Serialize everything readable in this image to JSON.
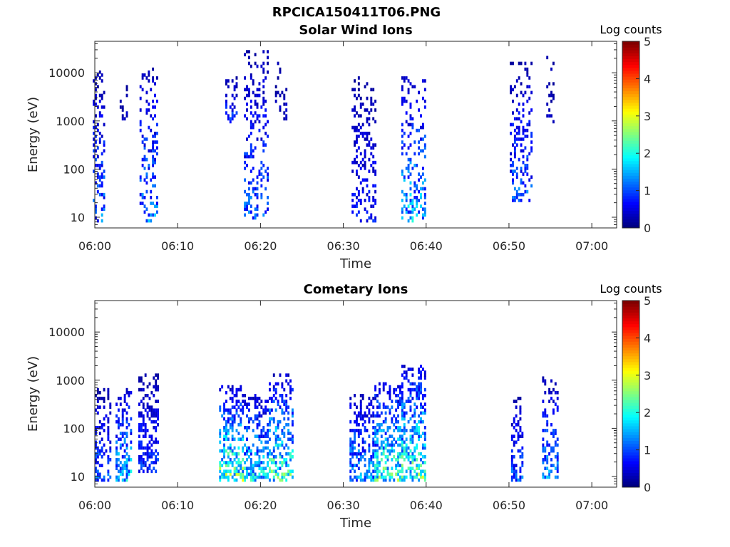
{
  "figure": {
    "title": "RPCICA150411T06.PNG"
  },
  "colors": {
    "axes": "#262626",
    "colormap": "jet",
    "background": "#ffffff"
  },
  "chart_data": [
    {
      "type": "heatmap",
      "title": "Solar Wind Ions",
      "xlabel": "Time",
      "ylabel": "Energy (eV)",
      "x_ticks": [
        "06:00",
        "06:10",
        "06:20",
        "06:30",
        "06:40",
        "06:50",
        "07:00"
      ],
      "xlim": [
        "06:00",
        "07:03"
      ],
      "y_scale": "log",
      "y_ticks": [
        "10",
        "100",
        "1000",
        "10000"
      ],
      "ylim": [
        6,
        45000
      ],
      "colorbar": {
        "label": "Log counts",
        "ticks": [
          "0",
          "1",
          "2",
          "3",
          "4",
          "5"
        ],
        "range": [
          0,
          5
        ]
      },
      "bursts": [
        {
          "center_minute": 0.5,
          "width_minutes": 1.5,
          "energy_range_eV": [
            7,
            10000
          ],
          "peak_log_counts": 1.6
        },
        {
          "center_minute": 3.5,
          "width_minutes": 1.0,
          "energy_range_eV": [
            1000,
            6000
          ],
          "peak_log_counts": 0.5
        },
        {
          "center_minute": 6.5,
          "width_minutes": 2.2,
          "energy_range_eV": [
            7,
            12000
          ],
          "peak_log_counts": 1.8
        },
        {
          "center_minute": 16.5,
          "width_minutes": 1.5,
          "energy_range_eV": [
            800,
            8000
          ],
          "peak_log_counts": 1.3
        },
        {
          "center_minute": 19.5,
          "width_minutes": 3.0,
          "energy_range_eV": [
            8,
            28000
          ],
          "peak_log_counts": 1.5
        },
        {
          "center_minute": 22.5,
          "width_minutes": 1.5,
          "energy_range_eV": [
            1000,
            15000
          ],
          "peak_log_counts": 0.5
        },
        {
          "center_minute": 32.5,
          "width_minutes": 3.0,
          "energy_range_eV": [
            7,
            9000
          ],
          "peak_log_counts": 1.0
        },
        {
          "center_minute": 38.5,
          "width_minutes": 3.0,
          "energy_range_eV": [
            7,
            8000
          ],
          "peak_log_counts": 2.2
        },
        {
          "center_minute": 51.5,
          "width_minutes": 2.8,
          "energy_range_eV": [
            20,
            15000
          ],
          "peak_log_counts": 1.5
        },
        {
          "center_minute": 55.0,
          "width_minutes": 1.0,
          "energy_range_eV": [
            700,
            20000
          ],
          "peak_log_counts": 0.5
        }
      ]
    },
    {
      "type": "heatmap",
      "title": "Cometary Ions",
      "xlabel": "Time",
      "ylabel": "Energy (eV)",
      "x_ticks": [
        "06:00",
        "06:10",
        "06:20",
        "06:30",
        "06:40",
        "06:50",
        "07:00"
      ],
      "xlim": [
        "06:00",
        "07:03"
      ],
      "y_scale": "log",
      "y_ticks": [
        "10",
        "100",
        "1000",
        "10000"
      ],
      "ylim": [
        6,
        45000
      ],
      "colorbar": {
        "label": "Log counts",
        "ticks": [
          "0",
          "1",
          "2",
          "3",
          "4",
          "5"
        ],
        "range": [
          0,
          5
        ]
      },
      "bursts": [
        {
          "center_minute": 1.0,
          "width_minutes": 2.0,
          "energy_range_eV": [
            7,
            600
          ],
          "peak_log_counts": 1.5
        },
        {
          "center_minute": 3.5,
          "width_minutes": 2.0,
          "energy_range_eV": [
            7,
            800
          ],
          "peak_log_counts": 2.2
        },
        {
          "center_minute": 6.5,
          "width_minutes": 2.5,
          "energy_range_eV": [
            12,
            1500
          ],
          "peak_log_counts": 1.2
        },
        {
          "center_minute": 16.5,
          "width_minutes": 3.0,
          "energy_range_eV": [
            7,
            700
          ],
          "peak_log_counts": 3.2
        },
        {
          "center_minute": 19.5,
          "width_minutes": 3.0,
          "energy_range_eV": [
            7,
            500
          ],
          "peak_log_counts": 2.5
        },
        {
          "center_minute": 22.5,
          "width_minutes": 3.0,
          "energy_range_eV": [
            7,
            1200
          ],
          "peak_log_counts": 3.0
        },
        {
          "center_minute": 32.5,
          "width_minutes": 3.5,
          "energy_range_eV": [
            7,
            500
          ],
          "peak_log_counts": 2.0
        },
        {
          "center_minute": 35.5,
          "width_minutes": 3.5,
          "energy_range_eV": [
            7,
            900
          ],
          "peak_log_counts": 3.0
        },
        {
          "center_minute": 38.5,
          "width_minutes": 3.0,
          "energy_range_eV": [
            7,
            2000
          ],
          "peak_log_counts": 3.2
        },
        {
          "center_minute": 51.0,
          "width_minutes": 1.5,
          "energy_range_eV": [
            7,
            400
          ],
          "peak_log_counts": 1.5
        },
        {
          "center_minute": 55.0,
          "width_minutes": 2.0,
          "energy_range_eV": [
            8,
            1100
          ],
          "peak_log_counts": 1.8
        }
      ]
    }
  ]
}
